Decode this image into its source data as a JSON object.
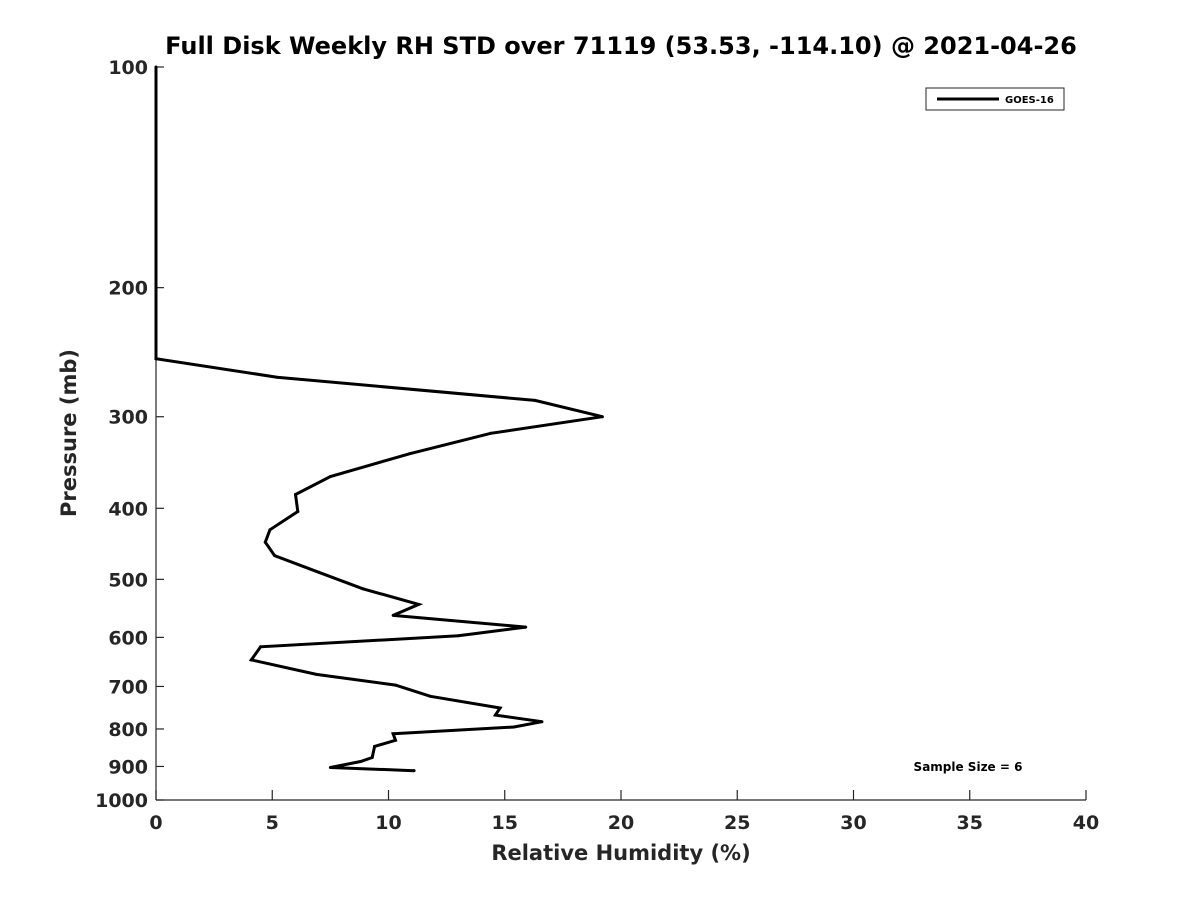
{
  "chart_data": {
    "type": "line",
    "title": "Full Disk Weekly RH STD over 71119 (53.53, -114.10) @ 2021-04-26",
    "xlabel": "Relative Humidity (%)",
    "ylabel": "Pressure (mb)",
    "xlim": [
      0,
      40
    ],
    "ylim": [
      1000,
      100
    ],
    "y_scale": "log",
    "y_reversed": true,
    "x_ticks": [
      "0",
      "5",
      "10",
      "15",
      "20",
      "25",
      "30",
      "35",
      "40"
    ],
    "y_ticks": [
      "100",
      "200",
      "300",
      "400",
      "500",
      "600",
      "700",
      "800",
      "900",
      "1000"
    ],
    "grid": false,
    "legend_position": "top-right",
    "annotation": "Sample Size = 6",
    "series": [
      {
        "name": "GOES-16",
        "color": "#000000",
        "points": [
          {
            "x": 0.0,
            "y": 100
          },
          {
            "x": 0.0,
            "y": 125
          },
          {
            "x": 0.0,
            "y": 150
          },
          {
            "x": 0.0,
            "y": 175
          },
          {
            "x": 0.0,
            "y": 200
          },
          {
            "x": 0.0,
            "y": 225
          },
          {
            "x": 0.0,
            "y": 250
          },
          {
            "x": 5.2,
            "y": 265
          },
          {
            "x": 16.3,
            "y": 285
          },
          {
            "x": 19.2,
            "y": 300
          },
          {
            "x": 14.4,
            "y": 316
          },
          {
            "x": 10.9,
            "y": 337
          },
          {
            "x": 7.5,
            "y": 362
          },
          {
            "x": 6.0,
            "y": 383
          },
          {
            "x": 6.1,
            "y": 404
          },
          {
            "x": 4.9,
            "y": 428
          },
          {
            "x": 4.7,
            "y": 445
          },
          {
            "x": 5.1,
            "y": 464
          },
          {
            "x": 7.0,
            "y": 489
          },
          {
            "x": 8.9,
            "y": 515
          },
          {
            "x": 11.3,
            "y": 541
          },
          {
            "x": 10.2,
            "y": 560
          },
          {
            "x": 15.9,
            "y": 581
          },
          {
            "x": 13.0,
            "y": 597
          },
          {
            "x": 4.5,
            "y": 618
          },
          {
            "x": 4.1,
            "y": 644
          },
          {
            "x": 6.9,
            "y": 674
          },
          {
            "x": 10.3,
            "y": 697
          },
          {
            "x": 11.8,
            "y": 722
          },
          {
            "x": 14.8,
            "y": 749
          },
          {
            "x": 14.6,
            "y": 766
          },
          {
            "x": 16.6,
            "y": 782
          },
          {
            "x": 15.4,
            "y": 795
          },
          {
            "x": 10.2,
            "y": 812
          },
          {
            "x": 10.3,
            "y": 829
          },
          {
            "x": 9.4,
            "y": 845
          },
          {
            "x": 9.3,
            "y": 875
          },
          {
            "x": 8.8,
            "y": 886
          },
          {
            "x": 7.5,
            "y": 903
          },
          {
            "x": 11.1,
            "y": 912
          }
        ]
      }
    ]
  }
}
